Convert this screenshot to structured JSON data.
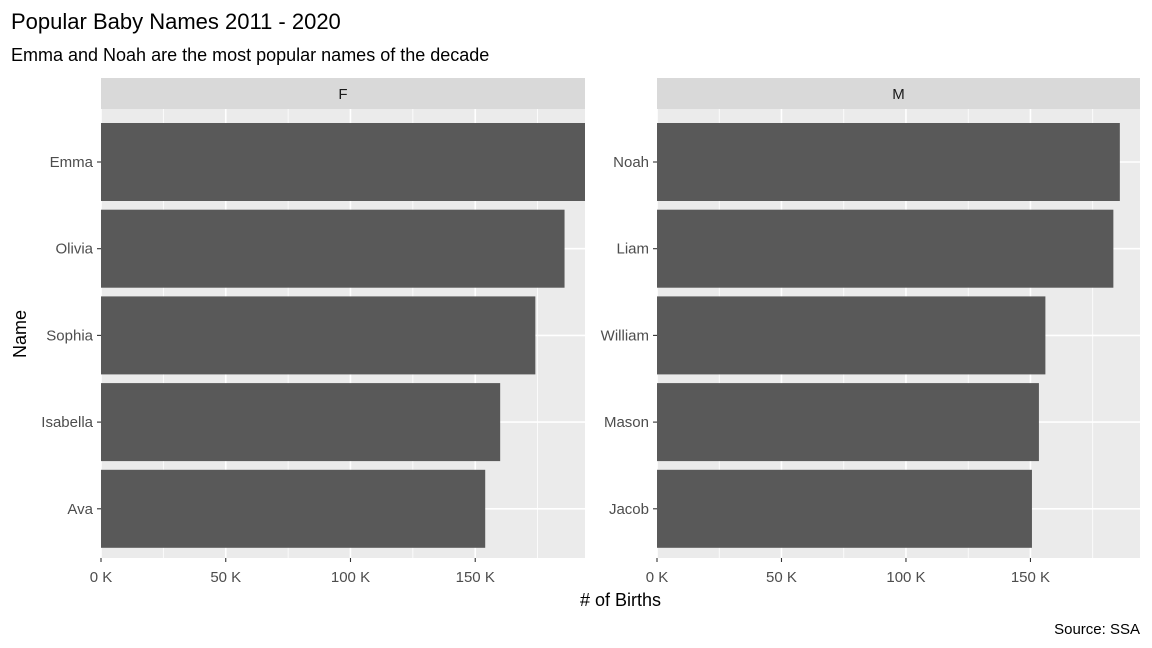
{
  "chart_data": {
    "type": "bar",
    "orientation": "horizontal",
    "title": "Popular Baby Names 2011 - 2020",
    "subtitle": "Emma and Noah are the most popular names of the decade",
    "xlabel": "# of Births",
    "ylabel": "Name",
    "caption": "Source: SSA",
    "xlim": [
      0,
      194000
    ],
    "x_ticks": [
      0,
      50000,
      100000,
      150000
    ],
    "x_tick_labels": [
      "0 K",
      "50 K",
      "100 K",
      "150 K"
    ],
    "grid": true,
    "colors": {
      "bar": "#595959",
      "panel_background": "#ebebeb",
      "grid": "#ffffff",
      "strip_background": "#d9d9d9"
    },
    "facets": [
      {
        "label": "F",
        "categories": [
          "Emma",
          "Olivia",
          "Sophia",
          "Isabella",
          "Ava"
        ],
        "values": [
          194000,
          185800,
          174100,
          160000,
          154000
        ]
      },
      {
        "label": "M",
        "categories": [
          "Noah",
          "Liam",
          "William",
          "Mason",
          "Jacob"
        ],
        "values": [
          185900,
          183300,
          156000,
          153400,
          150600
        ]
      }
    ]
  }
}
